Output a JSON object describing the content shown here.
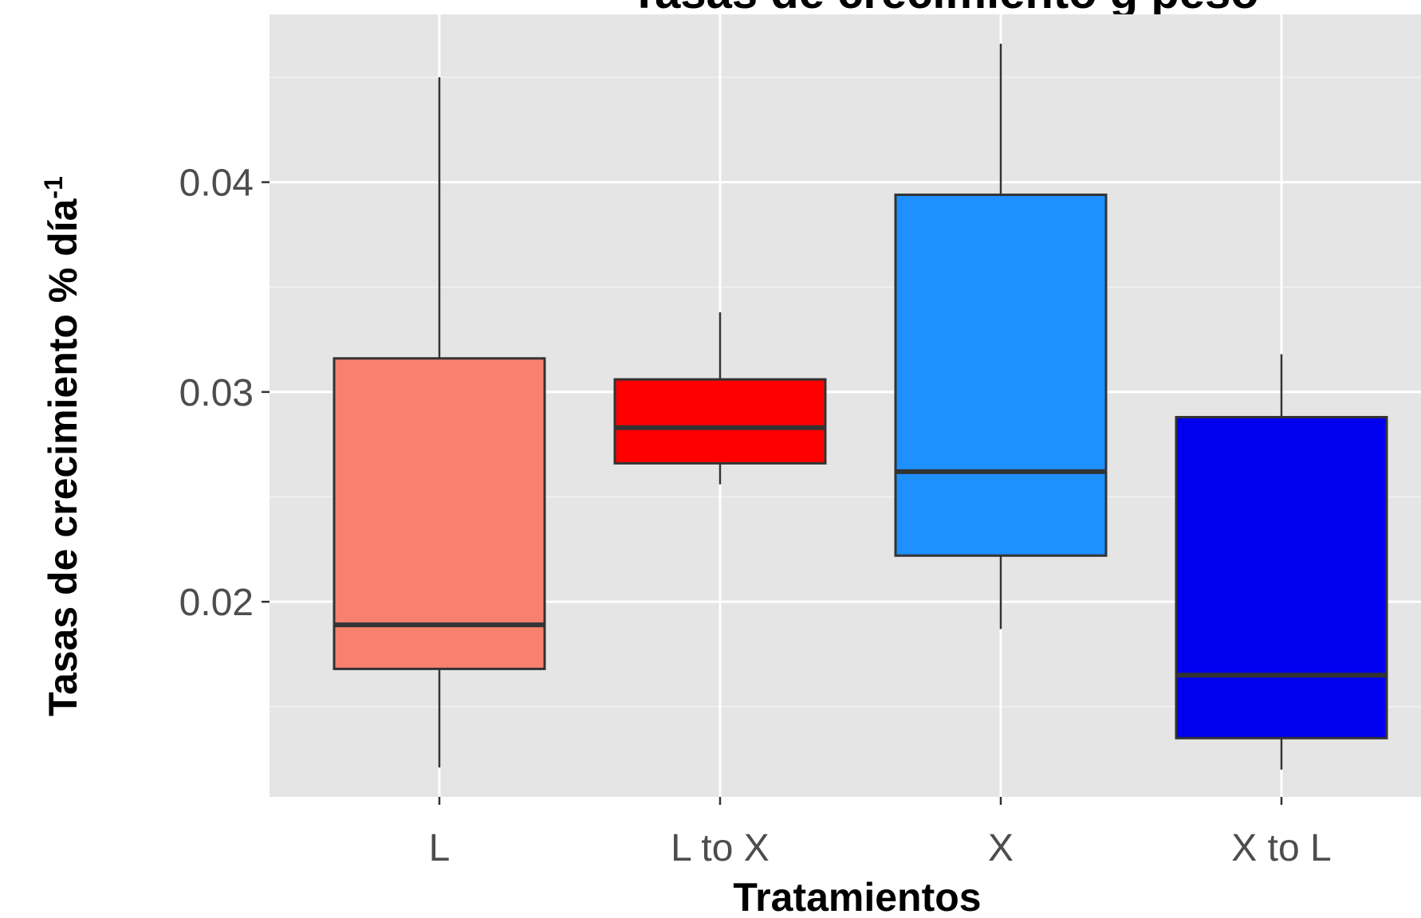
{
  "chart_data": {
    "type": "box",
    "title": "Tasas de crecimiento g",
    "title_part": "peso",
    "xlabel": "Tratamientos",
    "ylabel": "Tasas de crecimiento % día",
    "ylabel_superscript": "-1",
    "ylim": [
      0.0107,
      0.048
    ],
    "yticks": [
      0.02,
      0.03,
      0.04
    ],
    "ytick_labels": [
      "0.02",
      "0.03",
      "0.04"
    ],
    "grid": true,
    "background": "#e5e5e5",
    "categories": [
      "L",
      "L to X",
      "X",
      "X to L"
    ],
    "boxes": [
      {
        "category": "L",
        "min": 0.0121,
        "q1": 0.0168,
        "median": 0.0189,
        "q3": 0.0316,
        "max": 0.045,
        "color": "#f8806f"
      },
      {
        "category": "L to X",
        "min": 0.0256,
        "q1": 0.0266,
        "median": 0.0283,
        "q3": 0.0306,
        "max": 0.0338,
        "color": "#ff0000"
      },
      {
        "category": "X",
        "min": 0.0187,
        "q1": 0.0222,
        "median": 0.0262,
        "q3": 0.0394,
        "max": 0.0466,
        "color": "#1e90ff"
      },
      {
        "category": "X to L",
        "min": 0.012,
        "q1": 0.0135,
        "median": 0.0165,
        "q3": 0.0288,
        "max": 0.0318,
        "color": "#0000ee"
      }
    ]
  }
}
